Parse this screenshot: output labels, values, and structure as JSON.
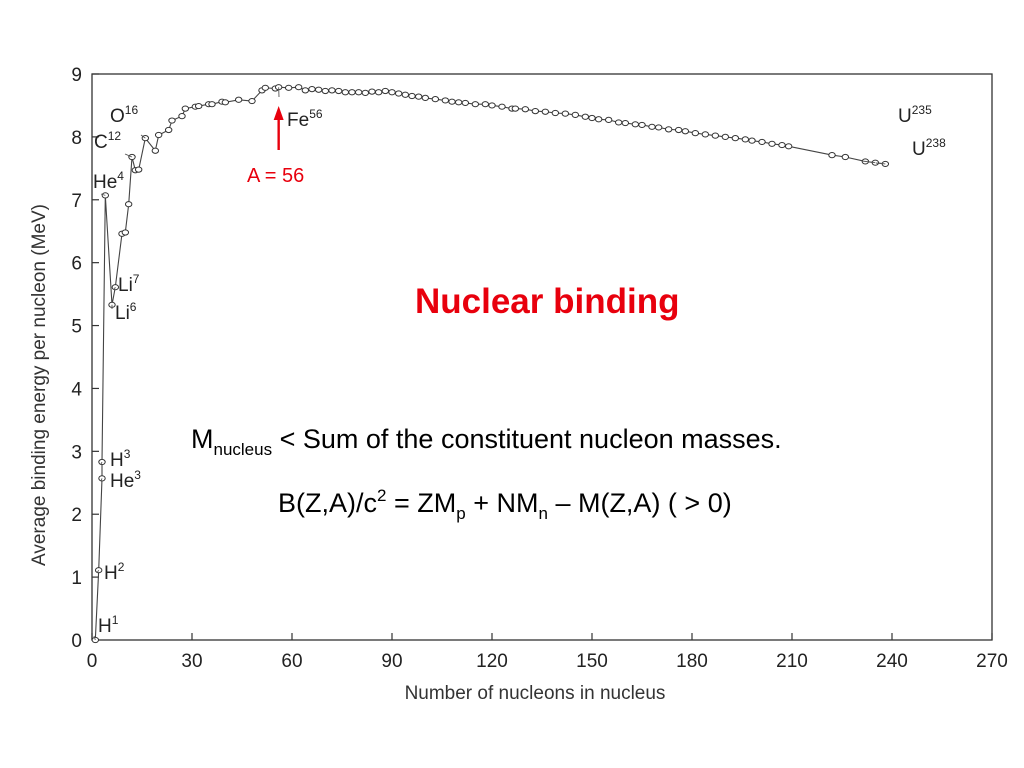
{
  "chart_data": {
    "type": "line",
    "title": "",
    "xlabel": "Number of nucleons in nucleus",
    "ylabel": "Average binding energy per nucleon (MeV)",
    "xlim": [
      0,
      270
    ],
    "ylim": [
      0,
      9
    ],
    "x_ticks": [
      0,
      30,
      60,
      90,
      120,
      150,
      180,
      210,
      240,
      270
    ],
    "y_ticks": [
      0,
      1,
      2,
      3,
      4,
      5,
      6,
      7,
      8,
      9
    ],
    "grid": false,
    "markers": "open-circle",
    "points": [
      [
        1,
        0
      ],
      [
        2,
        1.11
      ],
      [
        3,
        2.57
      ],
      [
        3,
        2.83
      ],
      [
        4,
        7.07
      ],
      [
        6,
        5.33
      ],
      [
        7,
        5.61
      ],
      [
        9,
        6.46
      ],
      [
        10,
        6.48
      ],
      [
        11,
        6.93
      ],
      [
        12,
        7.68
      ],
      [
        13,
        7.47
      ],
      [
        14,
        7.48
      ],
      [
        16,
        7.98
      ],
      [
        19,
        7.78
      ],
      [
        20,
        8.03
      ],
      [
        23,
        8.11
      ],
      [
        24,
        8.26
      ],
      [
        27,
        8.33
      ],
      [
        28,
        8.45
      ],
      [
        31,
        8.48
      ],
      [
        32,
        8.49
      ],
      [
        35,
        8.52
      ],
      [
        36,
        8.52
      ],
      [
        39,
        8.56
      ],
      [
        40,
        8.55
      ],
      [
        44,
        8.59
      ],
      [
        48,
        8.57
      ],
      [
        51,
        8.74
      ],
      [
        52,
        8.78
      ],
      [
        55,
        8.77
      ],
      [
        56,
        8.79
      ],
      [
        59,
        8.78
      ],
      [
        62,
        8.79
      ],
      [
        64,
        8.74
      ],
      [
        66,
        8.76
      ],
      [
        68,
        8.75
      ],
      [
        70,
        8.73
      ],
      [
        72,
        8.74
      ],
      [
        74,
        8.73
      ],
      [
        76,
        8.71
      ],
      [
        78,
        8.71
      ],
      [
        80,
        8.71
      ],
      [
        82,
        8.7
      ],
      [
        84,
        8.72
      ],
      [
        86,
        8.71
      ],
      [
        88,
        8.73
      ],
      [
        90,
        8.71
      ],
      [
        92,
        8.69
      ],
      [
        94,
        8.67
      ],
      [
        96,
        8.65
      ],
      [
        98,
        8.64
      ],
      [
        100,
        8.62
      ],
      [
        103,
        8.6
      ],
      [
        106,
        8.58
      ],
      [
        108,
        8.56
      ],
      [
        110,
        8.55
      ],
      [
        112,
        8.54
      ],
      [
        115,
        8.52
      ],
      [
        118,
        8.52
      ],
      [
        120,
        8.5
      ],
      [
        123,
        8.48
      ],
      [
        126,
        8.45
      ],
      [
        127,
        8.45
      ],
      [
        130,
        8.44
      ],
      [
        133,
        8.41
      ],
      [
        136,
        8.4
      ],
      [
        139,
        8.38
      ],
      [
        142,
        8.37
      ],
      [
        145,
        8.35
      ],
      [
        148,
        8.32
      ],
      [
        150,
        8.3
      ],
      [
        152,
        8.28
      ],
      [
        155,
        8.27
      ],
      [
        158,
        8.23
      ],
      [
        160,
        8.22
      ],
      [
        163,
        8.2
      ],
      [
        165,
        8.19
      ],
      [
        168,
        8.16
      ],
      [
        170,
        8.15
      ],
      [
        173,
        8.12
      ],
      [
        176,
        8.11
      ],
      [
        178,
        8.09
      ],
      [
        181,
        8.06
      ],
      [
        184,
        8.04
      ],
      [
        187,
        8.02
      ],
      [
        190,
        8.0
      ],
      [
        193,
        7.98
      ],
      [
        196,
        7.96
      ],
      [
        198,
        7.94
      ],
      [
        201,
        7.92
      ],
      [
        204,
        7.89
      ],
      [
        207,
        7.87
      ],
      [
        209,
        7.85
      ],
      [
        222,
        7.71
      ],
      [
        226,
        7.68
      ],
      [
        232,
        7.61
      ],
      [
        235,
        7.59
      ],
      [
        238,
        7.57
      ]
    ],
    "annotations": [
      {
        "base": "H",
        "sup": "1",
        "x": 1,
        "y": 0
      },
      {
        "base": "H",
        "sup": "2",
        "x": 2,
        "y": 1.11
      },
      {
        "base": "H",
        "sup": "3",
        "x": 3,
        "y": 2.83
      },
      {
        "base": "He",
        "sup": "3",
        "x": 3,
        "y": 2.57
      },
      {
        "base": "He",
        "sup": "4",
        "x": 4,
        "y": 7.07
      },
      {
        "base": "Li",
        "sup": "7",
        "x": 7,
        "y": 5.61
      },
      {
        "base": "Li",
        "sup": "6",
        "x": 6,
        "y": 5.33
      },
      {
        "base": "C",
        "sup": "12",
        "x": 12,
        "y": 7.68
      },
      {
        "base": "O",
        "sup": "16",
        "x": 16,
        "y": 7.98
      },
      {
        "base": "Fe",
        "sup": "56",
        "x": 56,
        "y": 8.79
      },
      {
        "base": "U",
        "sup": "235",
        "x": 235,
        "y": 7.59
      },
      {
        "base": "U",
        "sup": "238",
        "x": 238,
        "y": 7.57
      }
    ],
    "arrow_label": "A = 56",
    "arrow_x": 56,
    "arrow_color": "#e8000d"
  },
  "overlay": {
    "title": "Nuclear binding",
    "title_color": "#e8000d",
    "eq1": {
      "m": "M",
      "m_sub": "nucleus",
      "rest": " < Sum of the constituent nucleon masses."
    },
    "eq2": {
      "p1": "B(Z,A)/c",
      "sup2": "2",
      "p2": " = ZM",
      "sub_p": "p",
      "p3": " + NM",
      "sub_n": "n",
      "p4": " – M(Z,A) ( > 0)"
    }
  }
}
